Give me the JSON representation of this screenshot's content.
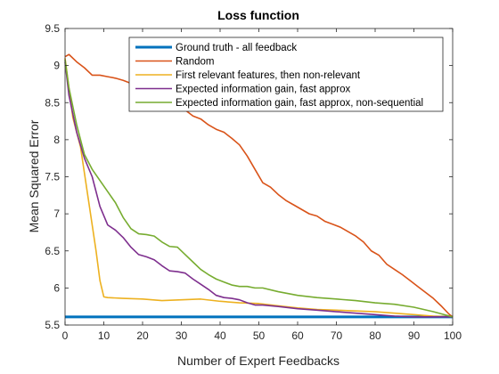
{
  "chart_data": {
    "type": "line",
    "title": "Loss function",
    "xlabel": "Number of Expert Feedbacks",
    "ylabel": "Mean Squared Error",
    "xlim": [
      0,
      100
    ],
    "ylim": [
      5.5,
      9.5
    ],
    "xticks": [
      0,
      10,
      20,
      30,
      40,
      50,
      60,
      70,
      80,
      90,
      100
    ],
    "yticks": [
      5.5,
      6,
      6.5,
      7,
      7.5,
      8,
      8.5,
      9,
      9.5
    ],
    "xtick_labels": [
      "0",
      "10",
      "20",
      "30",
      "40",
      "50",
      "60",
      "70",
      "80",
      "90",
      "100"
    ],
    "ytick_labels": [
      "5.5",
      "6",
      "6.5",
      "7",
      "7.5",
      "8",
      "8.5",
      "9",
      "9.5"
    ],
    "grid": false,
    "legend_position": "top-right",
    "series": [
      {
        "name": "Ground truth - all feedback",
        "color": "#0072BD",
        "width": 3,
        "x": [
          0,
          100
        ],
        "y": [
          5.61,
          5.61
        ]
      },
      {
        "name": "Random",
        "color": "#D95319",
        "width": 1.6,
        "x": [
          0,
          1,
          3,
          5,
          7,
          9,
          11,
          13,
          15,
          17,
          19,
          21,
          23,
          25,
          27,
          29,
          31,
          33,
          35,
          37,
          39,
          41,
          43,
          45,
          47,
          49,
          51,
          53,
          55,
          57,
          59,
          61,
          63,
          65,
          67,
          69,
          71,
          73,
          75,
          77,
          79,
          81,
          83,
          85,
          87,
          89,
          91,
          93,
          95,
          97,
          99,
          100
        ],
        "y": [
          9.12,
          9.15,
          9.05,
          8.97,
          8.87,
          8.87,
          8.85,
          8.83,
          8.8,
          8.76,
          8.72,
          8.72,
          8.7,
          8.62,
          8.55,
          8.48,
          8.4,
          8.32,
          8.28,
          8.2,
          8.14,
          8.1,
          8.02,
          7.93,
          7.78,
          7.6,
          7.42,
          7.36,
          7.26,
          7.18,
          7.12,
          7.06,
          7.0,
          6.97,
          6.9,
          6.86,
          6.82,
          6.76,
          6.7,
          6.62,
          6.5,
          6.44,
          6.32,
          6.25,
          6.18,
          6.1,
          6.02,
          5.94,
          5.86,
          5.76,
          5.65,
          5.61
        ]
      },
      {
        "name": "First relevant features, then non-relevant",
        "color": "#EDB120",
        "width": 1.6,
        "x": [
          0,
          2,
          4,
          6,
          8,
          9,
          10,
          11,
          15,
          20,
          25,
          30,
          35,
          40,
          45,
          50,
          55,
          60,
          65,
          70,
          75,
          80,
          85,
          90,
          95,
          100
        ],
        "y": [
          9.1,
          8.3,
          7.9,
          7.2,
          6.5,
          6.1,
          5.88,
          5.87,
          5.86,
          5.85,
          5.83,
          5.84,
          5.85,
          5.82,
          5.8,
          5.79,
          5.76,
          5.73,
          5.71,
          5.7,
          5.69,
          5.68,
          5.66,
          5.64,
          5.62,
          5.61
        ]
      },
      {
        "name": "Expected information gain, fast approx",
        "color": "#7E2F8E",
        "width": 1.6,
        "x": [
          0,
          1,
          3,
          5,
          7,
          9,
          11,
          13,
          15,
          17,
          19,
          21,
          23,
          25,
          27,
          29,
          31,
          33,
          35,
          37,
          39,
          41,
          43,
          45,
          47,
          49,
          51,
          55,
          60,
          65,
          70,
          75,
          80,
          85,
          90,
          95,
          100
        ],
        "y": [
          9.05,
          8.6,
          8.1,
          7.75,
          7.5,
          7.1,
          6.85,
          6.78,
          6.68,
          6.55,
          6.45,
          6.42,
          6.38,
          6.3,
          6.23,
          6.22,
          6.2,
          6.12,
          6.05,
          5.98,
          5.9,
          5.87,
          5.86,
          5.84,
          5.8,
          5.77,
          5.77,
          5.75,
          5.72,
          5.7,
          5.68,
          5.66,
          5.64,
          5.62,
          5.61,
          5.61,
          5.61
        ]
      },
      {
        "name": "Expected information gain, fast approx, non-sequential",
        "color": "#77AC30",
        "width": 1.6,
        "x": [
          0,
          1,
          3,
          5,
          7,
          9,
          11,
          13,
          15,
          17,
          19,
          21,
          23,
          25,
          27,
          29,
          31,
          33,
          35,
          37,
          39,
          41,
          43,
          45,
          47,
          49,
          51,
          55,
          60,
          65,
          70,
          75,
          80,
          85,
          90,
          95,
          100
        ],
        "y": [
          9.08,
          8.7,
          8.2,
          7.8,
          7.6,
          7.45,
          7.3,
          7.15,
          6.95,
          6.8,
          6.73,
          6.72,
          6.7,
          6.62,
          6.56,
          6.55,
          6.45,
          6.35,
          6.25,
          6.18,
          6.12,
          6.08,
          6.04,
          6.02,
          6.02,
          6.0,
          6.0,
          5.95,
          5.9,
          5.87,
          5.85,
          5.83,
          5.8,
          5.78,
          5.74,
          5.68,
          5.61
        ]
      }
    ]
  }
}
